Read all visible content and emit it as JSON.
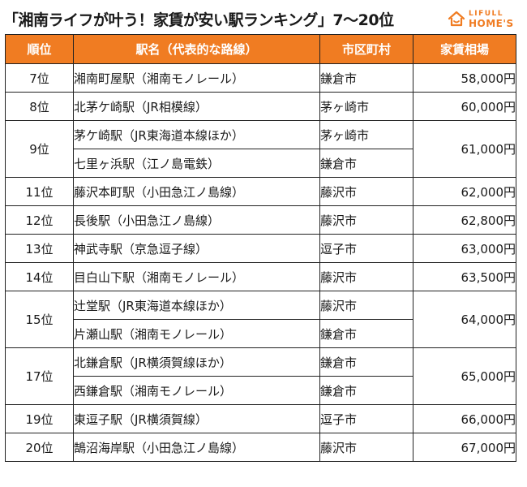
{
  "header": {
    "title": "「湘南ライフが叶う！家賃が安い駅ランキング」7〜20位",
    "logo_top": "LIFULL",
    "logo_bottom": "HOME'S",
    "logo_icon": "house-icon",
    "accent_color": "#f07c22"
  },
  "table": {
    "columns": [
      "順位",
      "駅名（代表的な路線）",
      "市区町村",
      "家賃相場"
    ],
    "rows": [
      {
        "rank": "7位",
        "rent": "58,000円",
        "stations": [
          {
            "station": "湘南町屋駅（湘南モノレール）",
            "city": "鎌倉市"
          }
        ]
      },
      {
        "rank": "8位",
        "rent": "60,000円",
        "stations": [
          {
            "station": "北茅ケ崎駅（JR相模線）",
            "city": "茅ヶ崎市"
          }
        ]
      },
      {
        "rank": "9位",
        "rent": "61,000円",
        "stations": [
          {
            "station": "茅ケ崎駅（JR東海道本線ほか）",
            "city": "茅ヶ崎市"
          },
          {
            "station": "七里ヶ浜駅（江ノ島電鉄）",
            "city": "鎌倉市"
          }
        ]
      },
      {
        "rank": "11位",
        "rent": "62,000円",
        "stations": [
          {
            "station": "藤沢本町駅（小田急江ノ島線）",
            "city": "藤沢市"
          }
        ]
      },
      {
        "rank": "12位",
        "rent": "62,800円",
        "stations": [
          {
            "station": "長後駅（小田急江ノ島線）",
            "city": "藤沢市"
          }
        ]
      },
      {
        "rank": "13位",
        "rent": "63,000円",
        "stations": [
          {
            "station": "神武寺駅（京急逗子線）",
            "city": "逗子市"
          }
        ]
      },
      {
        "rank": "14位",
        "rent": "63,500円",
        "stations": [
          {
            "station": "目白山下駅（湘南モノレール）",
            "city": "藤沢市"
          }
        ]
      },
      {
        "rank": "15位",
        "rent": "64,000円",
        "stations": [
          {
            "station": "辻堂駅（JR東海道本線ほか）",
            "city": "藤沢市"
          },
          {
            "station": "片瀬山駅（湘南モノレール）",
            "city": "鎌倉市"
          }
        ]
      },
      {
        "rank": "17位",
        "rent": "65,000円",
        "stations": [
          {
            "station": "北鎌倉駅（JR横須賀線ほか）",
            "city": "鎌倉市"
          },
          {
            "station": "西鎌倉駅（湘南モノレール）",
            "city": "鎌倉市"
          }
        ]
      },
      {
        "rank": "19位",
        "rent": "66,000円",
        "stations": [
          {
            "station": "東逗子駅（JR横須賀線）",
            "city": "逗子市"
          }
        ]
      },
      {
        "rank": "20位",
        "rent": "67,000円",
        "stations": [
          {
            "station": "鵠沼海岸駅（小田急江ノ島線）",
            "city": "藤沢市"
          }
        ]
      }
    ]
  }
}
